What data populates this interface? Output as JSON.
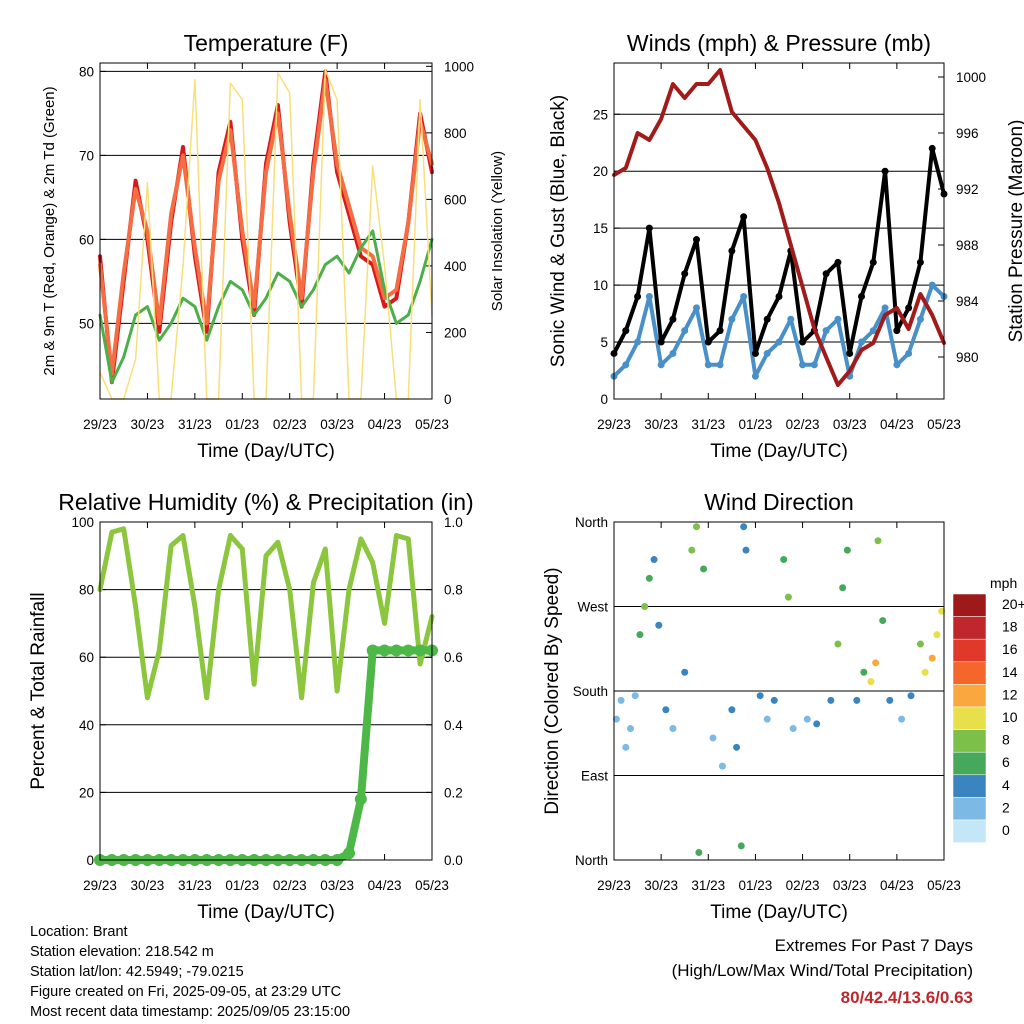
{
  "x_tick_labels": [
    "29/23",
    "30/23",
    "31/23",
    "01/23",
    "02/23",
    "03/23",
    "04/23",
    "05/23"
  ],
  "footer": {
    "location": "Location: Brant",
    "elevation": "Station elevation: 218.542 m",
    "latlon": "Station lat/lon: 42.5949; -79.0215",
    "created": "Figure created on Fri, 2025-09-05, at 23:29 UTC",
    "recent": "Most recent data timestamp: 2025/09/05 23:15:00"
  },
  "extremes": {
    "title": "Extremes For Past 7 Days",
    "subtitle": "(High/Low/Max Wind/Total Precipitation)",
    "values": "80/42.4/13.6/0.63"
  },
  "colors": {
    "temp_2m": "#d7191c",
    "temp_9m": "#f46d43",
    "dewpoint": "#4daf4a",
    "solar": "#f7e07a",
    "wind": "#4a90c8",
    "gust": "#000000",
    "pressure": "#a11b1b",
    "rh": "#8cc63f",
    "precip": "#4db848"
  },
  "chart_data": [
    {
      "id": "temperature",
      "type": "line",
      "title": "Temperature (F)",
      "xlabel": "Time (Day/UTC)",
      "ylabel": "2m & 9m T (Red, Orange) & 2m Td (Green)",
      "ylabel_right": "Solar Insolation (Yellow)",
      "x_range": [
        0,
        7
      ],
      "ylim": [
        41,
        81
      ],
      "yticks": [
        50,
        60,
        70,
        80
      ],
      "ylim_right": [
        0,
        1010
      ],
      "yticks_right": [
        0,
        200,
        400,
        600,
        800,
        1000
      ],
      "x": [
        0,
        0.25,
        0.5,
        0.75,
        1,
        1.25,
        1.5,
        1.75,
        2,
        2.25,
        2.5,
        2.75,
        3,
        3.25,
        3.5,
        3.75,
        4,
        4.25,
        4.5,
        4.75,
        5,
        5.25,
        5.5,
        5.75,
        6,
        6.25,
        6.5,
        6.75,
        7
      ],
      "series": [
        {
          "name": "2m T",
          "axis": "left",
          "color_key": "temp_2m",
          "values": [
            58,
            43,
            55,
            67,
            60,
            49,
            62,
            71,
            58,
            49,
            68,
            74,
            60,
            51,
            69,
            76,
            62,
            52,
            69,
            80,
            68,
            63,
            58,
            57,
            52,
            53,
            62,
            75,
            68
          ]
        },
        {
          "name": "9m T",
          "axis": "left",
          "color_key": "temp_9m",
          "values": [
            57,
            44,
            56,
            66,
            61,
            50,
            63,
            70,
            59,
            50,
            67,
            73,
            61,
            52,
            68,
            75,
            63,
            53,
            68,
            79,
            69,
            64,
            59,
            58,
            53,
            54,
            62,
            74,
            69
          ]
        },
        {
          "name": "2m Td",
          "axis": "left",
          "color_key": "dewpoint",
          "values": [
            51,
            43,
            46,
            51,
            52,
            48,
            50,
            53,
            52,
            48,
            52,
            55,
            54,
            51,
            53,
            56,
            55,
            52,
            54,
            57,
            58,
            56,
            59,
            61,
            54,
            50,
            51,
            55,
            60
          ]
        },
        {
          "name": "Solar",
          "axis": "right",
          "color_key": "solar",
          "values": [
            80,
            0,
            0,
            120,
            650,
            0,
            0,
            400,
            960,
            0,
            0,
            950,
            900,
            0,
            0,
            980,
            920,
            0,
            0,
            990,
            900,
            0,
            0,
            700,
            400,
            0,
            0,
            900,
            250
          ]
        }
      ]
    },
    {
      "id": "winds",
      "type": "scatter",
      "title": "Winds (mph) & Pressure (mb)",
      "xlabel": "Time (Day/UTC)",
      "ylabel": "Sonic Wind & Gust (Blue, Black)",
      "ylabel_right": "Station Pressure (Maroon)",
      "x_range": [
        0,
        7
      ],
      "ylim": [
        0,
        29.5
      ],
      "yticks": [
        0,
        5,
        10,
        15,
        20,
        25
      ],
      "ylim_right": [
        977,
        1001
      ],
      "yticks_right": [
        980,
        984,
        988,
        992,
        996,
        1000
      ],
      "x": [
        0,
        0.25,
        0.5,
        0.75,
        1,
        1.25,
        1.5,
        1.75,
        2,
        2.25,
        2.5,
        2.75,
        3,
        3.25,
        3.5,
        3.75,
        4,
        4.25,
        4.5,
        4.75,
        5,
        5.25,
        5.5,
        5.75,
        6,
        6.25,
        6.5,
        6.75,
        7
      ],
      "series": [
        {
          "name": "Sonic Wind",
          "axis": "left",
          "color_key": "wind",
          "values": [
            2,
            3,
            5,
            9,
            3,
            4,
            6,
            8,
            3,
            3,
            7,
            9,
            2,
            4,
            5,
            7,
            3,
            3,
            6,
            7,
            2,
            5,
            6,
            8,
            3,
            4,
            7,
            10,
            9
          ]
        },
        {
          "name": "Gust",
          "axis": "left",
          "color_key": "gust",
          "values": [
            4,
            6,
            9,
            15,
            5,
            7,
            11,
            14,
            5,
            6,
            13,
            16,
            4,
            7,
            9,
            13,
            5,
            6,
            11,
            12,
            4,
            9,
            12,
            20,
            6,
            8,
            12,
            22,
            18
          ]
        },
        {
          "name": "Pressure",
          "axis": "right",
          "color_key": "pressure",
          "values": [
            993,
            993.5,
            996,
            995.5,
            997,
            999.5,
            998.5,
            999.5,
            999.5,
            1000.5,
            997.5,
            996.5,
            995.5,
            993.5,
            991,
            988,
            985,
            982,
            980,
            978,
            979,
            980.5,
            981,
            983,
            983.5,
            982,
            984.5,
            983,
            981
          ]
        }
      ]
    },
    {
      "id": "humidity",
      "type": "line",
      "title": "Relative Humidity (%) & Precipitation (in)",
      "xlabel": "Time (Day/UTC)",
      "ylabel": "Percent & Total Rainfall",
      "x_range": [
        0,
        7
      ],
      "ylim": [
        0,
        100
      ],
      "yticks": [
        0,
        20,
        40,
        60,
        80,
        100
      ],
      "ylim_right": [
        0,
        1
      ],
      "yticks_right": [
        0,
        0.2,
        0.4,
        0.6,
        0.8,
        1
      ],
      "x": [
        0,
        0.25,
        0.5,
        0.75,
        1,
        1.25,
        1.5,
        1.75,
        2,
        2.25,
        2.5,
        2.75,
        3,
        3.25,
        3.5,
        3.75,
        4,
        4.25,
        4.5,
        4.75,
        5,
        5.25,
        5.5,
        5.75,
        6,
        6.25,
        6.5,
        6.75,
        7
      ],
      "series": [
        {
          "name": "RH",
          "axis": "left",
          "color_key": "rh",
          "values": [
            80,
            97,
            98,
            75,
            48,
            62,
            93,
            96,
            75,
            48,
            80,
            96,
            92,
            52,
            90,
            94,
            80,
            48,
            82,
            92,
            50,
            80,
            95,
            88,
            70,
            96,
            95,
            58,
            72
          ]
        },
        {
          "name": "Precipitation",
          "axis": "right",
          "color_key": "precip",
          "values": [
            0,
            0,
            0,
            0,
            0,
            0,
            0,
            0,
            0,
            0,
            0,
            0,
            0,
            0,
            0,
            0,
            0,
            0,
            0,
            0,
            0,
            0.02,
            0.18,
            0.62,
            0.62,
            0.62,
            0.62,
            0.62,
            0.62
          ]
        }
      ]
    },
    {
      "id": "direction",
      "type": "scatter",
      "title": "Wind Direction",
      "xlabel": "Time (Day/UTC)",
      "ylabel": "Direction (Colored By Speed)",
      "x_range": [
        0,
        7
      ],
      "ylim": [
        0,
        360
      ],
      "ytick_values": [
        0,
        90,
        180,
        270,
        360
      ],
      "ytick_labels": [
        "North",
        "East",
        "South",
        "West",
        "North"
      ],
      "legend_title": "mph",
      "legend_labels": [
        "20+",
        "18",
        "16",
        "14",
        "12",
        "10",
        "8",
        "6",
        "4",
        "2",
        "0"
      ],
      "legend_colors": [
        "#9e1a1a",
        "#c0272d",
        "#e0382b",
        "#f4662b",
        "#f9a73e",
        "#e8e04a",
        "#7cc04a",
        "#46a85a",
        "#3a85c0",
        "#7cb9e4",
        "#c3e6f8"
      ],
      "points": [
        {
          "x": 0.05,
          "y": 150,
          "s": 2
        },
        {
          "x": 0.15,
          "y": 170,
          "s": 2
        },
        {
          "x": 0.25,
          "y": 120,
          "s": 3
        },
        {
          "x": 0.35,
          "y": 140,
          "s": 2
        },
        {
          "x": 0.45,
          "y": 175,
          "s": 3
        },
        {
          "x": 0.55,
          "y": 240,
          "s": 6
        },
        {
          "x": 0.65,
          "y": 270,
          "s": 8
        },
        {
          "x": 0.75,
          "y": 300,
          "s": 7
        },
        {
          "x": 0.85,
          "y": 320,
          "s": 5
        },
        {
          "x": 0.95,
          "y": 250,
          "s": 4
        },
        {
          "x": 1.1,
          "y": 160,
          "s": 4
        },
        {
          "x": 1.25,
          "y": 140,
          "s": 3
        },
        {
          "x": 1.5,
          "y": 200,
          "s": 4
        },
        {
          "x": 1.65,
          "y": 330,
          "s": 8
        },
        {
          "x": 1.75,
          "y": 355,
          "s": 9
        },
        {
          "x": 1.8,
          "y": 8,
          "s": 6
        },
        {
          "x": 1.9,
          "y": 310,
          "s": 6
        },
        {
          "x": 2.1,
          "y": 130,
          "s": 3
        },
        {
          "x": 2.3,
          "y": 100,
          "s": 2
        },
        {
          "x": 2.5,
          "y": 160,
          "s": 4
        },
        {
          "x": 2.6,
          "y": 120,
          "s": 5
        },
        {
          "x": 2.7,
          "y": 15,
          "s": 6
        },
        {
          "x": 2.75,
          "y": 355,
          "s": 4
        },
        {
          "x": 2.8,
          "y": 330,
          "s": 5
        },
        {
          "x": 3.1,
          "y": 175,
          "s": 4
        },
        {
          "x": 3.25,
          "y": 150,
          "s": 3
        },
        {
          "x": 3.4,
          "y": 170,
          "s": 4
        },
        {
          "x": 3.6,
          "y": 320,
          "s": 7
        },
        {
          "x": 3.7,
          "y": 280,
          "s": 8
        },
        {
          "x": 3.8,
          "y": 140,
          "s": 3
        },
        {
          "x": 4.1,
          "y": 150,
          "s": 3
        },
        {
          "x": 4.3,
          "y": 145,
          "s": 4
        },
        {
          "x": 4.6,
          "y": 170,
          "s": 5
        },
        {
          "x": 4.75,
          "y": 230,
          "s": 8
        },
        {
          "x": 4.85,
          "y": 290,
          "s": 7
        },
        {
          "x": 4.95,
          "y": 330,
          "s": 6
        },
        {
          "x": 5.15,
          "y": 170,
          "s": 4
        },
        {
          "x": 5.3,
          "y": 200,
          "s": 7
        },
        {
          "x": 5.45,
          "y": 190,
          "s": 10
        },
        {
          "x": 5.55,
          "y": 210,
          "s": 12
        },
        {
          "x": 5.6,
          "y": 340,
          "s": 8
        },
        {
          "x": 5.7,
          "y": 255,
          "s": 6
        },
        {
          "x": 5.85,
          "y": 170,
          "s": 4
        },
        {
          "x": 6.1,
          "y": 150,
          "s": 3
        },
        {
          "x": 6.3,
          "y": 175,
          "s": 4
        },
        {
          "x": 6.5,
          "y": 230,
          "s": 9
        },
        {
          "x": 6.6,
          "y": 200,
          "s": 10
        },
        {
          "x": 6.75,
          "y": 215,
          "s": 12
        },
        {
          "x": 6.85,
          "y": 240,
          "s": 11
        },
        {
          "x": 6.95,
          "y": 265,
          "s": 10
        }
      ]
    }
  ]
}
